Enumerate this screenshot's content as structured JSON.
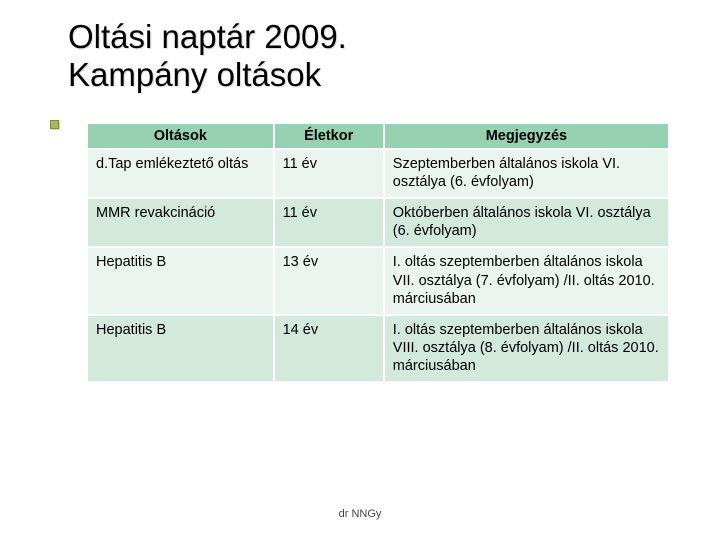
{
  "title_line1": "Oltási naptár 2009.",
  "title_line2": "Kampány oltások",
  "footer": "dr NNGy",
  "table": {
    "header_bg": "#98d1b2",
    "row_odd_bg": "#eaf5ef",
    "row_even_bg": "#d2e9dc",
    "border_color": "#ffffff",
    "text_color": "#000000",
    "font_size_pt": 11,
    "columns": [
      {
        "label": "Oltások",
        "width_pct": 32,
        "align": "center"
      },
      {
        "label": "Életkor",
        "width_pct": 19,
        "align": "center"
      },
      {
        "label": "Megjegyzés",
        "width_pct": 49,
        "align": "center"
      }
    ],
    "rows": [
      {
        "c0": "d.Tap emlékeztető oltás",
        "c1": "11 év",
        "c2": "Szeptemberben általános iskola VI. osztálya (6. évfolyam)"
      },
      {
        "c0": "MMR revakcináció",
        "c1": "11 év",
        "c2": "Októberben általános iskola VI. osztálya (6. évfolyam)"
      },
      {
        "c0": "Hepatitis B",
        "c1": "13 év",
        "c2": "I. oltás  szeptemberben általános iskola VII. osztálya (7. évfolyam) /II. oltás 2010. márciusában"
      },
      {
        "c0": "Hepatitis B",
        "c1": "14 év",
        "c2": "I. oltás szeptemberben általános iskola VIII. osztálya (8. évfolyam) /II. oltás 2010. márciusában"
      }
    ]
  },
  "style": {
    "background": "#ffffff",
    "title_fontsize_pt": 25,
    "title_color": "#000000",
    "bullet_color": "#a7b56f"
  }
}
